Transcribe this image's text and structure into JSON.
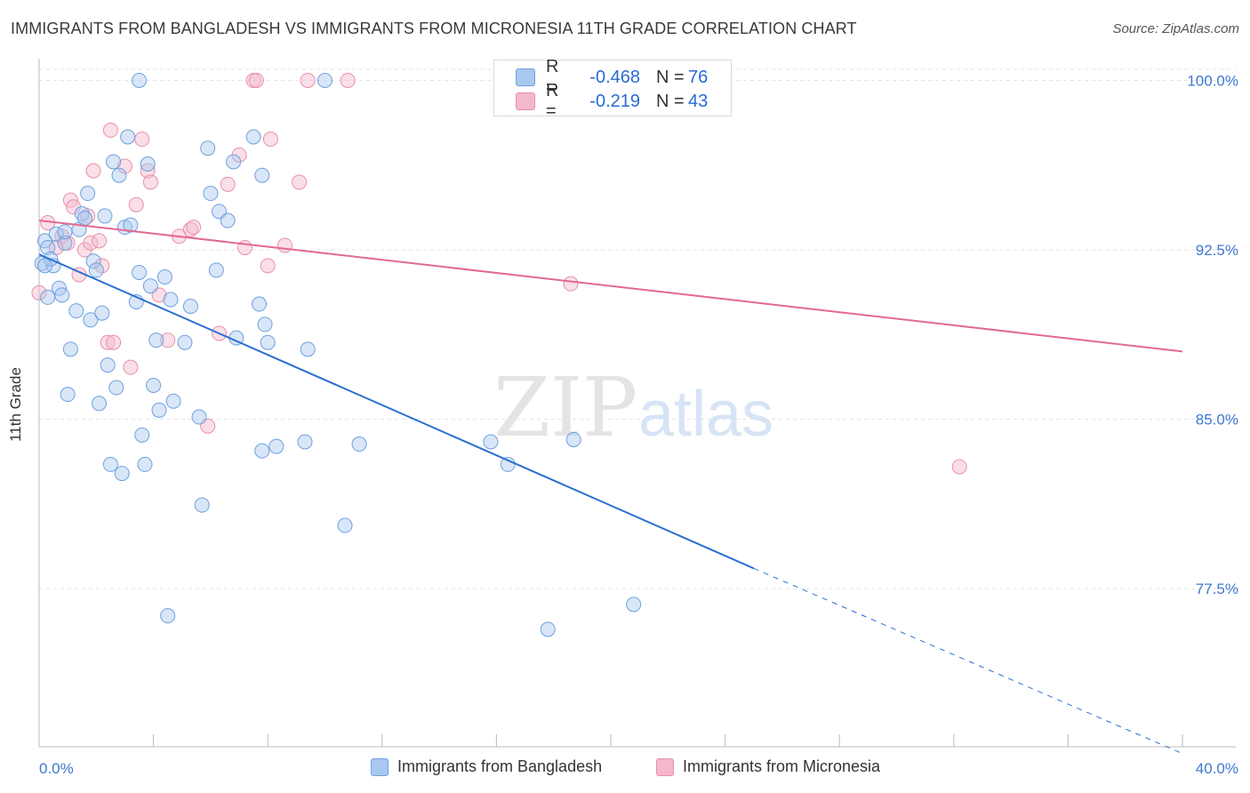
{
  "header": {
    "title": "IMMIGRANTS FROM BANGLADESH VS IMMIGRANTS FROM MICRONESIA 11TH GRADE CORRELATION CHART",
    "source": "Source: ZipAtlas.com"
  },
  "watermark": {
    "zip": "ZIP",
    "atlas": "atlas"
  },
  "legend": {
    "rows": [
      {
        "r_label": "R =",
        "r_value": "-0.468",
        "n_label": "N =",
        "n_value": "76",
        "color": "#a9c8f0"
      },
      {
        "r_label": "R =",
        "r_value": "-0.219",
        "n_label": "N =",
        "n_value": "43",
        "color": "#f5b8cb"
      }
    ]
  },
  "colors": {
    "blue_fill": "#a9c8f0",
    "blue_stroke": "#6fa0dd",
    "blue_line": "#2a6fd1",
    "pink_fill": "#f5b8cb",
    "pink_stroke": "#e98fab",
    "pink_line": "#e06a90",
    "grid": "#e3e3e3",
    "tick_label": "#3f78cf"
  },
  "chart_data": {
    "type": "scatter",
    "title": "IMMIGRANTS FROM BANGLADESH VS IMMIGRANTS FROM MICRONESIA 11TH GRADE CORRELATION CHART",
    "xlabel": "",
    "ylabel": "11th Grade",
    "xlim": [
      0,
      40
    ],
    "ylim": [
      70.5,
      101.2
    ],
    "x_tick_labels": [
      "0.0%",
      "40.0%"
    ],
    "y_ticks": [
      77.5,
      85.0,
      92.5,
      100.0
    ],
    "y_tick_labels": [
      "77.5%",
      "85.0%",
      "92.5%",
      "100.0%"
    ],
    "grid": true,
    "legend_position": "top-center",
    "series": [
      {
        "name": "Immigrants from Bangladesh",
        "color": "#a9c8f0",
        "trend": {
          "x0": 0,
          "y0": 92.3,
          "x1": 25.0,
          "y1": 78.4,
          "dashed_to_x": 40.0,
          "dashed_to_y": 70.2
        },
        "points": [
          [
            0.1,
            91.9
          ],
          [
            0.2,
            92.9
          ],
          [
            0.3,
            92.6
          ],
          [
            0.5,
            91.8
          ],
          [
            0.6,
            93.2
          ],
          [
            0.7,
            90.8
          ],
          [
            0.8,
            90.5
          ],
          [
            0.9,
            92.8
          ],
          [
            1.0,
            86.1
          ],
          [
            1.1,
            88.1
          ],
          [
            1.3,
            89.8
          ],
          [
            1.4,
            93.4
          ],
          [
            1.5,
            94.1
          ],
          [
            1.6,
            93.9
          ],
          [
            1.7,
            95.0
          ],
          [
            1.8,
            89.4
          ],
          [
            1.9,
            92.0
          ],
          [
            2.0,
            91.6
          ],
          [
            2.1,
            85.7
          ],
          [
            2.2,
            89.7
          ],
          [
            2.3,
            94.0
          ],
          [
            2.4,
            87.4
          ],
          [
            2.5,
            83.0
          ],
          [
            2.6,
            96.4
          ],
          [
            2.7,
            86.4
          ],
          [
            2.8,
            95.8
          ],
          [
            2.9,
            82.6
          ],
          [
            3.0,
            93.5
          ],
          [
            3.1,
            97.5
          ],
          [
            3.2,
            93.6
          ],
          [
            3.4,
            90.2
          ],
          [
            3.5,
            91.5
          ],
          [
            3.6,
            84.3
          ],
          [
            3.7,
            83.0
          ],
          [
            3.8,
            96.3
          ],
          [
            3.9,
            90.9
          ],
          [
            3.5,
            100.0
          ],
          [
            4.0,
            86.5
          ],
          [
            4.1,
            88.5
          ],
          [
            4.2,
            85.4
          ],
          [
            4.4,
            91.3
          ],
          [
            4.5,
            76.3
          ],
          [
            4.6,
            90.3
          ],
          [
            4.7,
            85.8
          ],
          [
            5.1,
            88.4
          ],
          [
            5.3,
            90.0
          ],
          [
            5.6,
            85.1
          ],
          [
            5.7,
            81.2
          ],
          [
            5.9,
            97.0
          ],
          [
            6.0,
            95.0
          ],
          [
            6.3,
            94.2
          ],
          [
            6.2,
            91.6
          ],
          [
            6.6,
            93.8
          ],
          [
            6.8,
            96.4
          ],
          [
            6.9,
            88.6
          ],
          [
            7.5,
            97.5
          ],
          [
            7.7,
            90.1
          ],
          [
            7.8,
            95.8
          ],
          [
            7.8,
            83.6
          ],
          [
            7.9,
            89.2
          ],
          [
            8.0,
            88.4
          ],
          [
            8.3,
            83.8
          ],
          [
            9.3,
            84.0
          ],
          [
            9.4,
            88.1
          ],
          [
            10.0,
            100.0
          ],
          [
            10.7,
            80.3
          ],
          [
            11.2,
            83.9
          ],
          [
            15.8,
            84.0
          ],
          [
            16.4,
            83.0
          ],
          [
            17.8,
            75.7
          ],
          [
            18.7,
            84.1
          ],
          [
            20.8,
            76.8
          ],
          [
            0.4,
            92.1
          ],
          [
            0.2,
            91.8
          ],
          [
            0.9,
            93.3
          ],
          [
            0.3,
            90.4
          ]
        ]
      },
      {
        "name": "Immigrants from Micronesia",
        "color": "#f5b8cb",
        "trend": {
          "x0": 0,
          "y0": 93.8,
          "x1": 40.0,
          "y1": 88.0
        },
        "points": [
          [
            0.0,
            90.6
          ],
          [
            0.3,
            93.7
          ],
          [
            0.6,
            92.6
          ],
          [
            0.8,
            93.1
          ],
          [
            1.0,
            92.8
          ],
          [
            1.1,
            94.7
          ],
          [
            1.2,
            94.4
          ],
          [
            1.4,
            91.4
          ],
          [
            1.6,
            92.5
          ],
          [
            1.7,
            94.0
          ],
          [
            1.8,
            92.8
          ],
          [
            1.9,
            96.0
          ],
          [
            2.1,
            92.9
          ],
          [
            2.2,
            91.8
          ],
          [
            2.4,
            88.4
          ],
          [
            2.5,
            97.8
          ],
          [
            2.6,
            88.4
          ],
          [
            3.0,
            96.2
          ],
          [
            3.2,
            87.3
          ],
          [
            3.4,
            94.5
          ],
          [
            3.6,
            97.4
          ],
          [
            3.8,
            96.0
          ],
          [
            3.9,
            95.5
          ],
          [
            4.2,
            90.5
          ],
          [
            4.5,
            88.5
          ],
          [
            4.9,
            93.1
          ],
          [
            5.3,
            93.4
          ],
          [
            5.4,
            93.5
          ],
          [
            5.9,
            84.7
          ],
          [
            6.3,
            88.8
          ],
          [
            6.6,
            95.4
          ],
          [
            7.0,
            96.7
          ],
          [
            7.2,
            92.6
          ],
          [
            7.5,
            100.0
          ],
          [
            7.6,
            100.0
          ],
          [
            8.0,
            91.8
          ],
          [
            8.1,
            97.4
          ],
          [
            8.6,
            92.7
          ],
          [
            9.1,
            95.5
          ],
          [
            9.4,
            100.0
          ],
          [
            10.8,
            100.0
          ],
          [
            18.6,
            91.0
          ],
          [
            32.2,
            82.9
          ]
        ]
      }
    ]
  },
  "bottom_legend": {
    "items": [
      {
        "label": "Immigrants from Bangladesh",
        "color": "#a9c8f0",
        "border": "#6fa0dd"
      },
      {
        "label": "Immigrants from Micronesia",
        "color": "#f5b8cb",
        "border": "#e98fab"
      }
    ]
  }
}
